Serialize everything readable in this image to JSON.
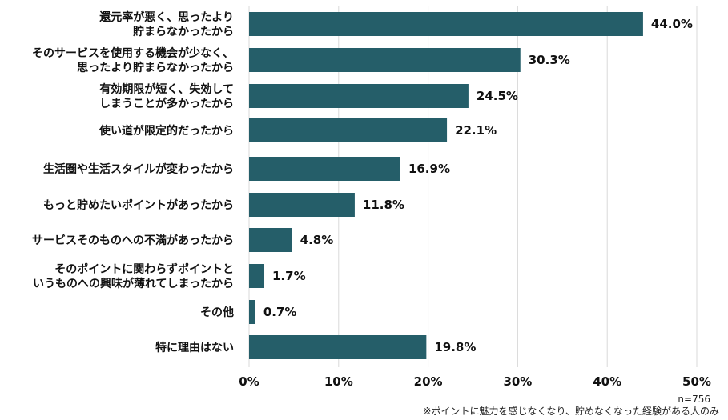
{
  "chart_data": {
    "type": "bar",
    "orientation": "horizontal",
    "categories": [
      [
        "還元率が悪く、思ったより",
        "貯まらなかったから"
      ],
      [
        "そのサービスを使用する機会が少なく、",
        "思ったより貯まらなかったから"
      ],
      [
        "有効期限が短く、失効して",
        "しまうことが多かったから"
      ],
      [
        "使い道が限定的だったから"
      ],
      [
        "生活圏や生活スタイルが変わったから"
      ],
      [
        "もっと貯めたいポイントがあったから"
      ],
      [
        "サービスそのものへの不満があったから"
      ],
      [
        "そのポイントに関わらずポイントと",
        "いうものへの興味が薄れてしまったから"
      ],
      [
        "その他"
      ],
      [
        "特に理由はない"
      ]
    ],
    "values": [
      44.0,
      30.3,
      24.5,
      22.1,
      16.9,
      11.8,
      4.8,
      1.7,
      0.7,
      19.8
    ],
    "value_labels": [
      "44.0%",
      "30.3%",
      "24.5%",
      "22.1%",
      "16.9%",
      "11.8%",
      "4.8%",
      "1.7%",
      "0.7%",
      "19.8%"
    ],
    "x_ticks": [
      0,
      10,
      20,
      30,
      40,
      50
    ],
    "x_tick_labels": [
      "0%",
      "10%",
      "20%",
      "30%",
      "40%",
      "50%"
    ],
    "xlim": [
      0,
      50
    ],
    "grid": "vertical",
    "legend": "none",
    "colors": {
      "bar": "#255E69",
      "grid": "#d9d9d9",
      "text": "#111111"
    },
    "sample_note": "n=756",
    "footnote": "※ポイントに魅力を感じなくなり、貯めなくなった経験がある人のみ"
  }
}
